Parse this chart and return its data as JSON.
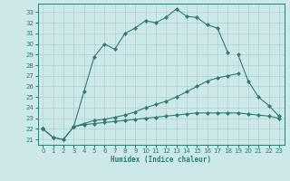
{
  "title": "",
  "xlabel": "Humidex (Indice chaleur)",
  "x_values": [
    0,
    1,
    2,
    3,
    4,
    5,
    6,
    7,
    8,
    9,
    10,
    11,
    12,
    13,
    14,
    15,
    16,
    17,
    18,
    19,
    20,
    21,
    22,
    23
  ],
  "line1": [
    22.0,
    21.2,
    21.0,
    22.2,
    25.5,
    28.8,
    30.0,
    29.5,
    31.0,
    31.5,
    32.2,
    32.0,
    32.5,
    33.3,
    32.6,
    32.5,
    31.8,
    31.5,
    29.2,
    null,
    null,
    null,
    null,
    null
  ],
  "line2": [
    22.0,
    null,
    null,
    22.2,
    null,
    null,
    null,
    null,
    null,
    null,
    null,
    null,
    null,
    null,
    null,
    null,
    null,
    null,
    null,
    29.0,
    26.5,
    25.0,
    24.2,
    23.2
  ],
  "line3": [
    22.0,
    21.2,
    21.0,
    22.2,
    22.5,
    22.8,
    22.9,
    23.1,
    23.3,
    23.6,
    24.0,
    24.3,
    24.6,
    25.0,
    25.5,
    26.0,
    26.5,
    26.8,
    27.0,
    27.2,
    null,
    null,
    null,
    null
  ],
  "line4": [
    22.0,
    null,
    null,
    22.2,
    22.4,
    22.5,
    22.6,
    22.7,
    22.8,
    22.9,
    23.0,
    23.1,
    23.2,
    23.3,
    23.4,
    23.5,
    23.5,
    23.5,
    23.5,
    23.5,
    23.4,
    23.3,
    23.2,
    23.0
  ],
  "color": "#2d7d6f",
  "ylim": [
    20.5,
    33.8
  ],
  "xlim": [
    -0.5,
    23.5
  ],
  "yticks": [
    21,
    22,
    23,
    24,
    25,
    26,
    27,
    28,
    29,
    30,
    31,
    32,
    33
  ],
  "xticks": [
    0,
    1,
    2,
    3,
    4,
    5,
    6,
    7,
    8,
    9,
    10,
    11,
    12,
    13,
    14,
    15,
    16,
    17,
    18,
    19,
    20,
    21,
    22,
    23
  ],
  "bg_color": "#cde8e8",
  "grid_color": "#aed0d0",
  "markersize": 2.5
}
